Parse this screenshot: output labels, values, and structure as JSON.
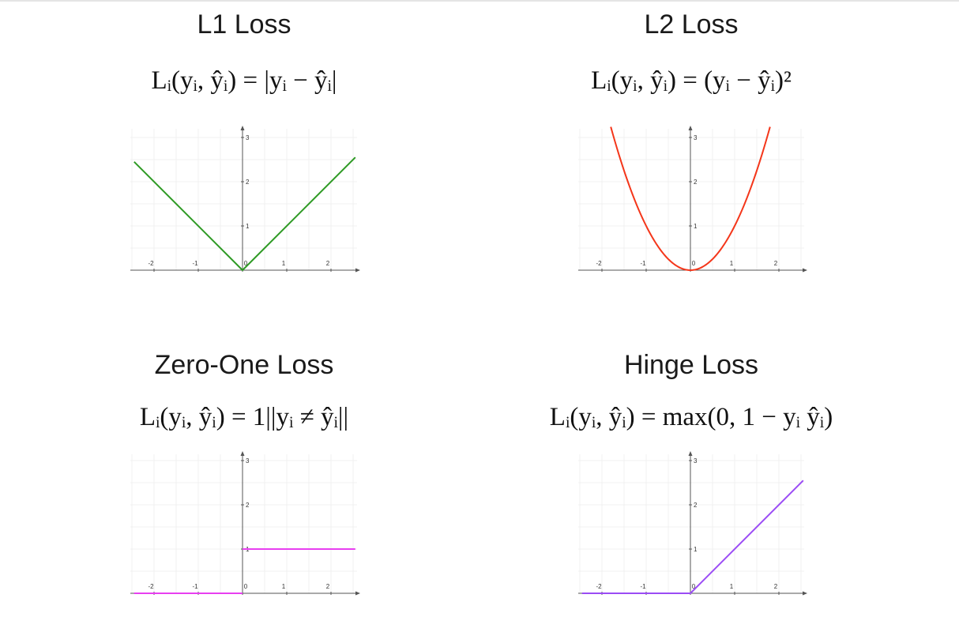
{
  "chart_data": [
    {
      "type": "line",
      "title": "L1 Loss",
      "subtitle": "Lᵢ(yᵢ, ŷᵢ) = |yᵢ − ŷᵢ|",
      "x_ticks": [
        "-2",
        "-1",
        "0",
        "1",
        "2"
      ],
      "y_ticks": [
        "1",
        "2",
        "3"
      ],
      "xlim": [
        -2.5,
        2.5
      ],
      "ylim": [
        0,
        3.2
      ],
      "grid": true,
      "series": [
        {
          "color": "#2e9a24",
          "x": [
            -2.45,
            0,
            2.55
          ],
          "y": [
            2.45,
            0,
            2.55
          ]
        }
      ]
    },
    {
      "type": "line",
      "title": "L2 Loss",
      "subtitle": "Lᵢ(yᵢ, ŷᵢ) = (yᵢ − ŷᵢ)²",
      "x_ticks": [
        "-2",
        "-1",
        "0",
        "1",
        "2"
      ],
      "y_ticks": [
        "1",
        "2",
        "3"
      ],
      "xlim": [
        -2.5,
        2.5
      ],
      "ylim": [
        0,
        3.2
      ],
      "grid": true,
      "series": [
        {
          "color": "#f4361a",
          "x": [
            -1.8,
            -1.5,
            -1.2,
            -0.9,
            -0.6,
            -0.3,
            0,
            0.3,
            0.6,
            0.9,
            1.2,
            1.5,
            1.8
          ],
          "y": [
            3.24,
            2.25,
            1.44,
            0.81,
            0.36,
            0.09,
            0,
            0.09,
            0.36,
            0.81,
            1.44,
            2.25,
            3.24
          ]
        }
      ]
    },
    {
      "type": "line",
      "title": "Zero-One Loss",
      "subtitle": "Lᵢ(yᵢ, ŷᵢ) = 1||yᵢ ≠ ŷᵢ||",
      "x_ticks": [
        "-2",
        "-1",
        "0",
        "1",
        "2"
      ],
      "y_ticks": [
        "1",
        "2",
        "3"
      ],
      "xlim": [
        -2.5,
        2.5
      ],
      "ylim": [
        0,
        3.2
      ],
      "grid": true,
      "series": [
        {
          "color": "#e83ff0",
          "x": [
            -2.45,
            0
          ],
          "y": [
            0,
            0
          ]
        },
        {
          "color": "#e83ff0",
          "x": [
            0,
            2.55
          ],
          "y": [
            1,
            1
          ]
        }
      ]
    },
    {
      "type": "line",
      "title": "Hinge Loss",
      "subtitle": "Lᵢ(yᵢ, ŷᵢ) = max(0,  1 − yᵢ ŷᵢ)",
      "x_ticks": [
        "-2",
        "-1",
        "0",
        "1",
        "2"
      ],
      "y_ticks": [
        "1",
        "2",
        "3"
      ],
      "xlim": [
        -2.5,
        2.5
      ],
      "ylim": [
        0,
        3.2
      ],
      "grid": true,
      "series": [
        {
          "color": "#9b4cf5",
          "x": [
            -2.45,
            0,
            2.55
          ],
          "y": [
            0,
            0,
            2.55
          ]
        }
      ]
    }
  ]
}
